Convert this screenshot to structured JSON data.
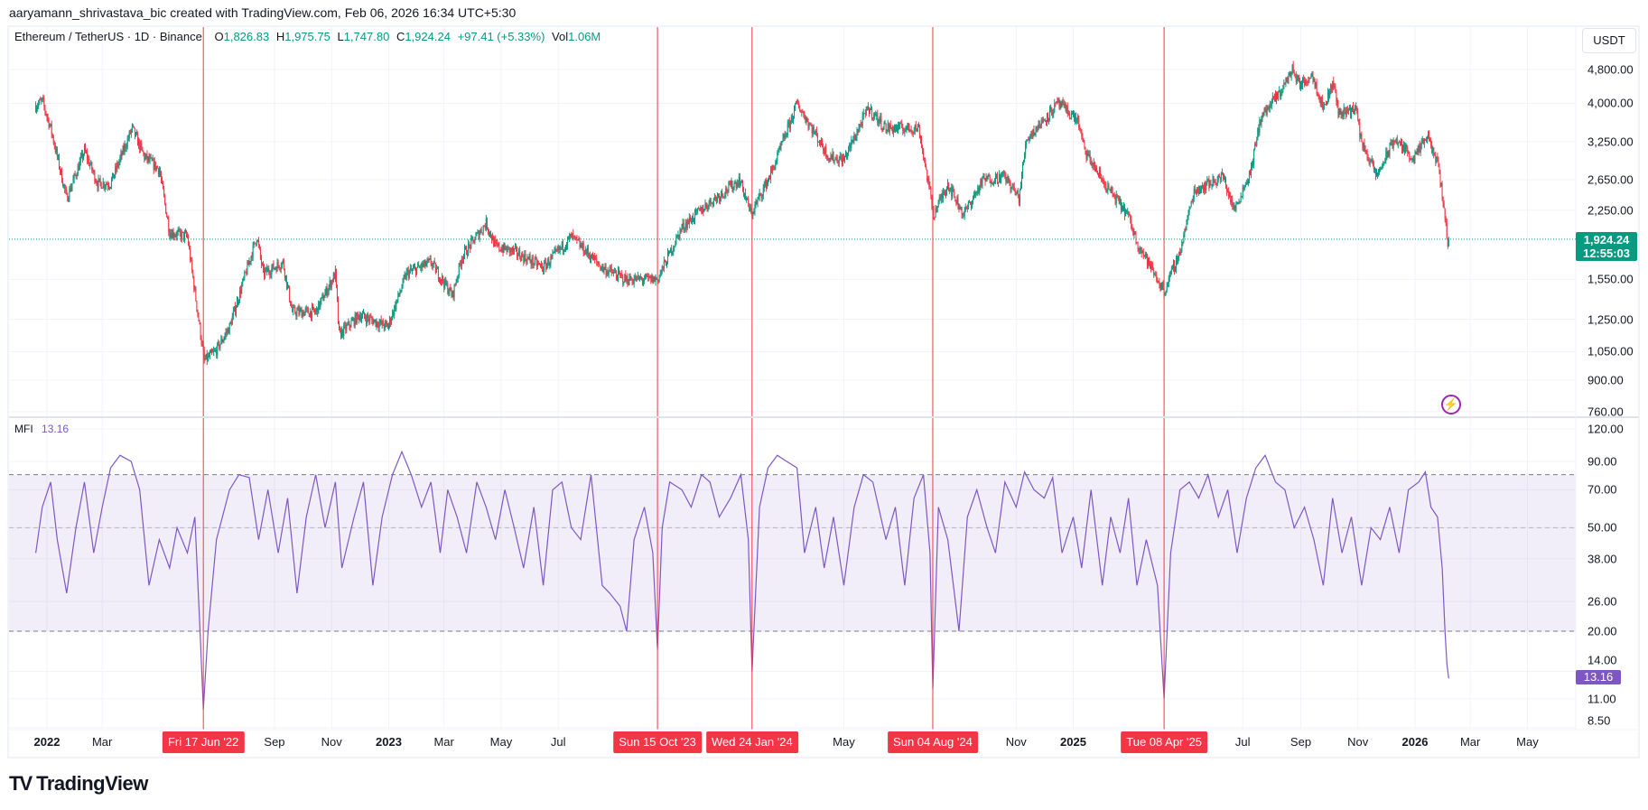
{
  "attribution": "aaryamann_shrivastava_bic created with TradingView.com, Feb 06, 2026 16:34 UTC+5:30",
  "legend": {
    "symbol": "Ethereum / TetherUS · 1D · Binance",
    "o_label": "O",
    "o": "1,826.83",
    "h_label": "H",
    "h": "1,975.75",
    "l_label": "L",
    "l": "1,747.80",
    "c_label": "C",
    "c": "1,924.24",
    "change": "+97.41 (+5.33%)",
    "vol_label": "Vol",
    "vol": "1.06M"
  },
  "currency_button": "USDT",
  "last_price": {
    "price": "1,924.24",
    "countdown": "12:55:03"
  },
  "mfi_legend": {
    "name": "MFI",
    "value": "13.16"
  },
  "logo_text": "TradingView",
  "colors": {
    "up": "#089981",
    "down": "#f23645",
    "mfi": "#7e57c2",
    "marker": "#f23645",
    "band": "#7e57c2"
  },
  "icons": {
    "alert": "lightning-icon"
  },
  "chart_data": [
    {
      "type": "candlestick",
      "title": "Ethereum / TetherUS · 1D · Binance",
      "scale": "log",
      "ylim": [
        760,
        4800
      ],
      "price_ticks": [
        "4,800.00",
        "4,000.00",
        "3,250.00",
        "2,650.00",
        "2,250.00",
        "1,550.00",
        "1,250.00",
        "1,050.00",
        "900.00",
        "760.00"
      ],
      "price_tick_values": [
        4800,
        4000,
        3250,
        2650,
        2250,
        1550,
        1250,
        1050,
        900,
        760
      ],
      "last_close": 1924.24,
      "grid": true,
      "close_path": [
        [
          "2021-12-20",
          3950
        ],
        [
          "2021-12-27",
          4050
        ],
        [
          "2022-01-05",
          3500
        ],
        [
          "2022-01-22",
          2400
        ],
        [
          "2022-02-10",
          3100
        ],
        [
          "2022-02-24",
          2600
        ],
        [
          "2022-03-10",
          2600
        ],
        [
          "2022-04-02",
          3500
        ],
        [
          "2022-04-15",
          3000
        ],
        [
          "2022-05-01",
          2800
        ],
        [
          "2022-05-12",
          2000
        ],
        [
          "2022-05-31",
          1950
        ],
        [
          "2022-06-13",
          1200
        ],
        [
          "2022-06-18",
          1000
        ],
        [
          "2022-06-30",
          1050
        ],
        [
          "2022-07-15",
          1200
        ],
        [
          "2022-08-13",
          1950
        ],
        [
          "2022-08-20",
          1600
        ],
        [
          "2022-09-10",
          1700
        ],
        [
          "2022-09-20",
          1300
        ],
        [
          "2022-10-15",
          1300
        ],
        [
          "2022-11-05",
          1600
        ],
        [
          "2022-11-09",
          1150
        ],
        [
          "2022-12-01",
          1280
        ],
        [
          "2022-12-31",
          1200
        ],
        [
          "2023-01-20",
          1600
        ],
        [
          "2023-02-15",
          1700
        ],
        [
          "2023-03-10",
          1420
        ],
        [
          "2023-03-20",
          1750
        ],
        [
          "2023-04-15",
          2100
        ],
        [
          "2023-04-25",
          1850
        ],
        [
          "2023-05-15",
          1800
        ],
        [
          "2023-06-15",
          1650
        ],
        [
          "2023-07-15",
          1950
        ],
        [
          "2023-08-17",
          1650
        ],
        [
          "2023-09-11",
          1550
        ],
        [
          "2023-10-15",
          1550
        ],
        [
          "2023-11-10",
          2050
        ],
        [
          "2023-12-10",
          2350
        ],
        [
          "2024-01-11",
          2650
        ],
        [
          "2024-01-23",
          2200
        ],
        [
          "2024-02-15",
          2800
        ],
        [
          "2024-03-12",
          4000
        ],
        [
          "2024-04-15",
          3000
        ],
        [
          "2024-05-01",
          2950
        ],
        [
          "2024-05-27",
          3900
        ],
        [
          "2024-06-15",
          3500
        ],
        [
          "2024-07-20",
          3500
        ],
        [
          "2024-08-05",
          2200
        ],
        [
          "2024-08-20",
          2600
        ],
        [
          "2024-09-06",
          2200
        ],
        [
          "2024-09-27",
          2650
        ],
        [
          "2024-10-20",
          2700
        ],
        [
          "2024-11-04",
          2400
        ],
        [
          "2024-11-12",
          3300
        ],
        [
          "2024-12-16",
          4000
        ],
        [
          "2025-01-06",
          3650
        ],
        [
          "2025-01-13",
          3100
        ],
        [
          "2025-02-03",
          2600
        ],
        [
          "2025-02-28",
          2200
        ],
        [
          "2025-03-10",
          1900
        ],
        [
          "2025-04-08",
          1450
        ],
        [
          "2025-04-25",
          1800
        ],
        [
          "2025-05-10",
          2500
        ],
        [
          "2025-06-10",
          2700
        ],
        [
          "2025-06-22",
          2250
        ],
        [
          "2025-07-10",
          2800
        ],
        [
          "2025-07-20",
          3700
        ],
        [
          "2025-08-10",
          4250
        ],
        [
          "2025-08-23",
          4800
        ],
        [
          "2025-09-01",
          4400
        ],
        [
          "2025-09-13",
          4700
        ],
        [
          "2025-09-25",
          3900
        ],
        [
          "2025-10-06",
          4500
        ],
        [
          "2025-10-11",
          3800
        ],
        [
          "2025-10-30",
          3900
        ],
        [
          "2025-11-04",
          3300
        ],
        [
          "2025-11-21",
          2700
        ],
        [
          "2025-12-10",
          3300
        ],
        [
          "2025-12-31",
          2970
        ],
        [
          "2026-01-14",
          3350
        ],
        [
          "2026-01-25",
          2900
        ],
        [
          "2026-01-31",
          2400
        ],
        [
          "2026-02-05",
          1850
        ],
        [
          "2026-02-06",
          1924.24
        ]
      ]
    },
    {
      "type": "line",
      "title": "MFI",
      "scale": "log",
      "ylim": [
        8.5,
        120
      ],
      "ticks": [
        "120.00",
        "90.00",
        "70.00",
        "50.00",
        "38.00",
        "26.00",
        "20.00",
        "14.00",
        "11.00",
        "8.50"
      ],
      "tick_values": [
        120,
        90,
        70,
        50,
        38,
        26,
        20,
        14,
        11,
        8.5
      ],
      "bands": [
        80,
        50,
        20
      ],
      "last_value": 13.16,
      "points": [
        [
          "2021-12-20",
          40
        ],
        [
          "2021-12-27",
          60
        ],
        [
          "2022-01-05",
          75
        ],
        [
          "2022-01-12",
          45
        ],
        [
          "2022-01-22",
          28
        ],
        [
          "2022-02-01",
          50
        ],
        [
          "2022-02-10",
          75
        ],
        [
          "2022-02-20",
          40
        ],
        [
          "2022-03-01",
          60
        ],
        [
          "2022-03-10",
          85
        ],
        [
          "2022-03-20",
          95
        ],
        [
          "2022-04-01",
          90
        ],
        [
          "2022-04-10",
          70
        ],
        [
          "2022-04-20",
          30
        ],
        [
          "2022-05-01",
          45
        ],
        [
          "2022-05-12",
          35
        ],
        [
          "2022-05-20",
          50
        ],
        [
          "2022-05-31",
          40
        ],
        [
          "2022-06-08",
          55
        ],
        [
          "2022-06-14",
          18
        ],
        [
          "2022-06-17",
          10
        ],
        [
          "2022-06-22",
          20
        ],
        [
          "2022-07-01",
          45
        ],
        [
          "2022-07-15",
          70
        ],
        [
          "2022-07-25",
          80
        ],
        [
          "2022-08-05",
          78
        ],
        [
          "2022-08-15",
          45
        ],
        [
          "2022-08-25",
          70
        ],
        [
          "2022-09-05",
          40
        ],
        [
          "2022-09-15",
          65
        ],
        [
          "2022-09-25",
          28
        ],
        [
          "2022-10-05",
          55
        ],
        [
          "2022-10-15",
          80
        ],
        [
          "2022-10-25",
          50
        ],
        [
          "2022-11-05",
          75
        ],
        [
          "2022-11-12",
          35
        ],
        [
          "2022-11-25",
          55
        ],
        [
          "2022-12-05",
          75
        ],
        [
          "2022-12-15",
          30
        ],
        [
          "2022-12-25",
          55
        ],
        [
          "2023-01-05",
          80
        ],
        [
          "2023-01-15",
          98
        ],
        [
          "2023-01-25",
          80
        ],
        [
          "2023-02-05",
          60
        ],
        [
          "2023-02-15",
          75
        ],
        [
          "2023-02-25",
          40
        ],
        [
          "2023-03-05",
          70
        ],
        [
          "2023-03-15",
          55
        ],
        [
          "2023-03-25",
          40
        ],
        [
          "2023-04-05",
          75
        ],
        [
          "2023-04-15",
          60
        ],
        [
          "2023-04-25",
          45
        ],
        [
          "2023-05-05",
          70
        ],
        [
          "2023-05-15",
          50
        ],
        [
          "2023-05-25",
          35
        ],
        [
          "2023-06-05",
          60
        ],
        [
          "2023-06-15",
          30
        ],
        [
          "2023-06-25",
          70
        ],
        [
          "2023-07-05",
          75
        ],
        [
          "2023-07-15",
          50
        ],
        [
          "2023-07-25",
          45
        ],
        [
          "2023-08-05",
          80
        ],
        [
          "2023-08-17",
          30
        ],
        [
          "2023-08-25",
          28
        ],
        [
          "2023-09-05",
          25
        ],
        [
          "2023-09-12",
          20
        ],
        [
          "2023-09-20",
          45
        ],
        [
          "2023-10-01",
          60
        ],
        [
          "2023-10-10",
          40
        ],
        [
          "2023-10-15",
          17
        ],
        [
          "2023-10-20",
          50
        ],
        [
          "2023-10-28",
          75
        ],
        [
          "2023-11-10",
          70
        ],
        [
          "2023-11-20",
          60
        ],
        [
          "2023-12-01",
          80
        ],
        [
          "2023-12-10",
          75
        ],
        [
          "2023-12-20",
          55
        ],
        [
          "2024-01-01",
          65
        ],
        [
          "2024-01-12",
          80
        ],
        [
          "2024-01-20",
          45
        ],
        [
          "2024-01-24",
          14
        ],
        [
          "2024-02-01",
          60
        ],
        [
          "2024-02-10",
          85
        ],
        [
          "2024-02-20",
          95
        ],
        [
          "2024-03-01",
          90
        ],
        [
          "2024-03-12",
          85
        ],
        [
          "2024-03-20",
          40
        ],
        [
          "2024-04-01",
          60
        ],
        [
          "2024-04-10",
          35
        ],
        [
          "2024-04-20",
          55
        ],
        [
          "2024-05-01",
          30
        ],
        [
          "2024-05-12",
          60
        ],
        [
          "2024-05-22",
          80
        ],
        [
          "2024-06-01",
          75
        ],
        [
          "2024-06-15",
          45
        ],
        [
          "2024-06-25",
          60
        ],
        [
          "2024-07-05",
          30
        ],
        [
          "2024-07-15",
          65
        ],
        [
          "2024-07-25",
          80
        ],
        [
          "2024-08-01",
          40
        ],
        [
          "2024-08-04",
          12
        ],
        [
          "2024-08-10",
          60
        ],
        [
          "2024-08-20",
          45
        ],
        [
          "2024-09-01",
          20
        ],
        [
          "2024-09-10",
          55
        ],
        [
          "2024-09-20",
          70
        ],
        [
          "2024-10-01",
          50
        ],
        [
          "2024-10-10",
          40
        ],
        [
          "2024-10-20",
          75
        ],
        [
          "2024-11-01",
          60
        ],
        [
          "2024-11-10",
          82
        ],
        [
          "2024-11-20",
          70
        ],
        [
          "2024-12-01",
          65
        ],
        [
          "2024-12-10",
          78
        ],
        [
          "2024-12-20",
          40
        ],
        [
          "2025-01-01",
          55
        ],
        [
          "2025-01-10",
          35
        ],
        [
          "2025-01-20",
          70
        ],
        [
          "2025-02-01",
          30
        ],
        [
          "2025-02-10",
          55
        ],
        [
          "2025-02-20",
          40
        ],
        [
          "2025-03-01",
          65
        ],
        [
          "2025-03-10",
          30
        ],
        [
          "2025-03-20",
          45
        ],
        [
          "2025-04-01",
          30
        ],
        [
          "2025-04-08",
          11
        ],
        [
          "2025-04-15",
          40
        ],
        [
          "2025-04-25",
          70
        ],
        [
          "2025-05-05",
          75
        ],
        [
          "2025-05-15",
          65
        ],
        [
          "2025-05-25",
          80
        ],
        [
          "2025-06-05",
          55
        ],
        [
          "2025-06-15",
          70
        ],
        [
          "2025-06-25",
          40
        ],
        [
          "2025-07-05",
          65
        ],
        [
          "2025-07-15",
          85
        ],
        [
          "2025-07-25",
          95
        ],
        [
          "2025-08-05",
          75
        ],
        [
          "2025-08-15",
          70
        ],
        [
          "2025-08-25",
          50
        ],
        [
          "2025-09-05",
          60
        ],
        [
          "2025-09-15",
          45
        ],
        [
          "2025-09-25",
          30
        ],
        [
          "2025-10-05",
          65
        ],
        [
          "2025-10-15",
          40
        ],
        [
          "2025-10-25",
          55
        ],
        [
          "2025-11-05",
          30
        ],
        [
          "2025-11-15",
          50
        ],
        [
          "2025-11-25",
          45
        ],
        [
          "2025-12-05",
          60
        ],
        [
          "2025-12-15",
          40
        ],
        [
          "2025-12-25",
          70
        ],
        [
          "2026-01-05",
          75
        ],
        [
          "2026-01-12",
          82
        ],
        [
          "2026-01-18",
          60
        ],
        [
          "2026-01-25",
          55
        ],
        [
          "2026-01-30",
          35
        ],
        [
          "2026-02-02",
          20
        ],
        [
          "2026-02-04",
          15
        ],
        [
          "2026-02-06",
          13.16
        ]
      ]
    }
  ],
  "time_axis": [
    {
      "label": "2022",
      "date": "2022-01-01",
      "year": true
    },
    {
      "label": "Mar",
      "date": "2022-03-01"
    },
    {
      "label": "Sep",
      "date": "2022-09-01"
    },
    {
      "label": "Nov",
      "date": "2022-11-01"
    },
    {
      "label": "2023",
      "date": "2023-01-01",
      "year": true
    },
    {
      "label": "Mar",
      "date": "2023-03-01"
    },
    {
      "label": "May",
      "date": "2023-05-01"
    },
    {
      "label": "Jul",
      "date": "2023-07-01"
    },
    {
      "label": "May",
      "date": "2024-05-01"
    },
    {
      "label": "Nov",
      "date": "2024-11-01"
    },
    {
      "label": "2025",
      "date": "2025-01-01",
      "year": true
    },
    {
      "label": "Jul",
      "date": "2025-07-01"
    },
    {
      "label": "Sep",
      "date": "2025-09-01"
    },
    {
      "label": "Nov",
      "date": "2025-11-01"
    },
    {
      "label": "2026",
      "date": "2026-01-01",
      "year": true
    },
    {
      "label": "Mar",
      "date": "2026-03-01"
    },
    {
      "label": "May",
      "date": "2026-05-01"
    }
  ],
  "markers": [
    {
      "label": "Fri 17 Jun '22",
      "date": "2022-06-17"
    },
    {
      "label": "Sun 15 Oct '23",
      "date": "2023-10-15"
    },
    {
      "label": "Wed 24 Jan '24",
      "date": "2024-01-24"
    },
    {
      "label": "Sun 04 Aug '24",
      "date": "2024-08-04"
    },
    {
      "label": "Tue 08 Apr '25",
      "date": "2025-04-08"
    }
  ]
}
